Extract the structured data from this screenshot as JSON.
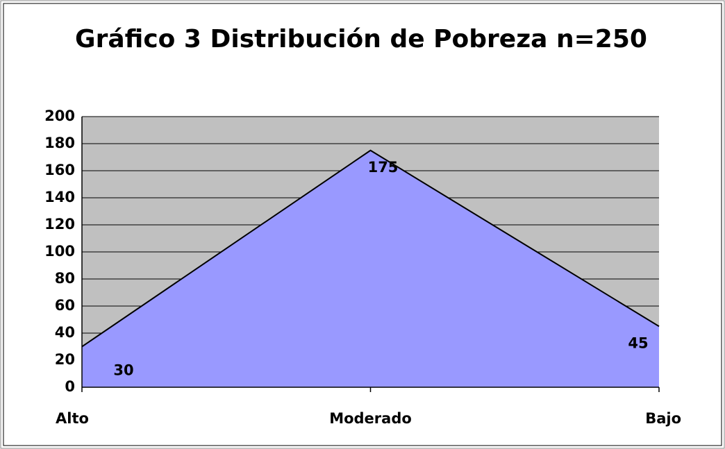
{
  "chart_data": {
    "type": "area",
    "title": "Gráfico 3 Distribución de Pobreza n=250",
    "categories": [
      "Alto",
      "Moderado",
      "Bajo"
    ],
    "values": [
      30,
      175,
      45
    ],
    "color": "#9999ff",
    "plot_background": "#c0c0c0",
    "ylim": [
      0,
      200
    ],
    "yticks": [
      0,
      20,
      40,
      60,
      80,
      100,
      120,
      140,
      160,
      180,
      200
    ],
    "grid": true
  }
}
